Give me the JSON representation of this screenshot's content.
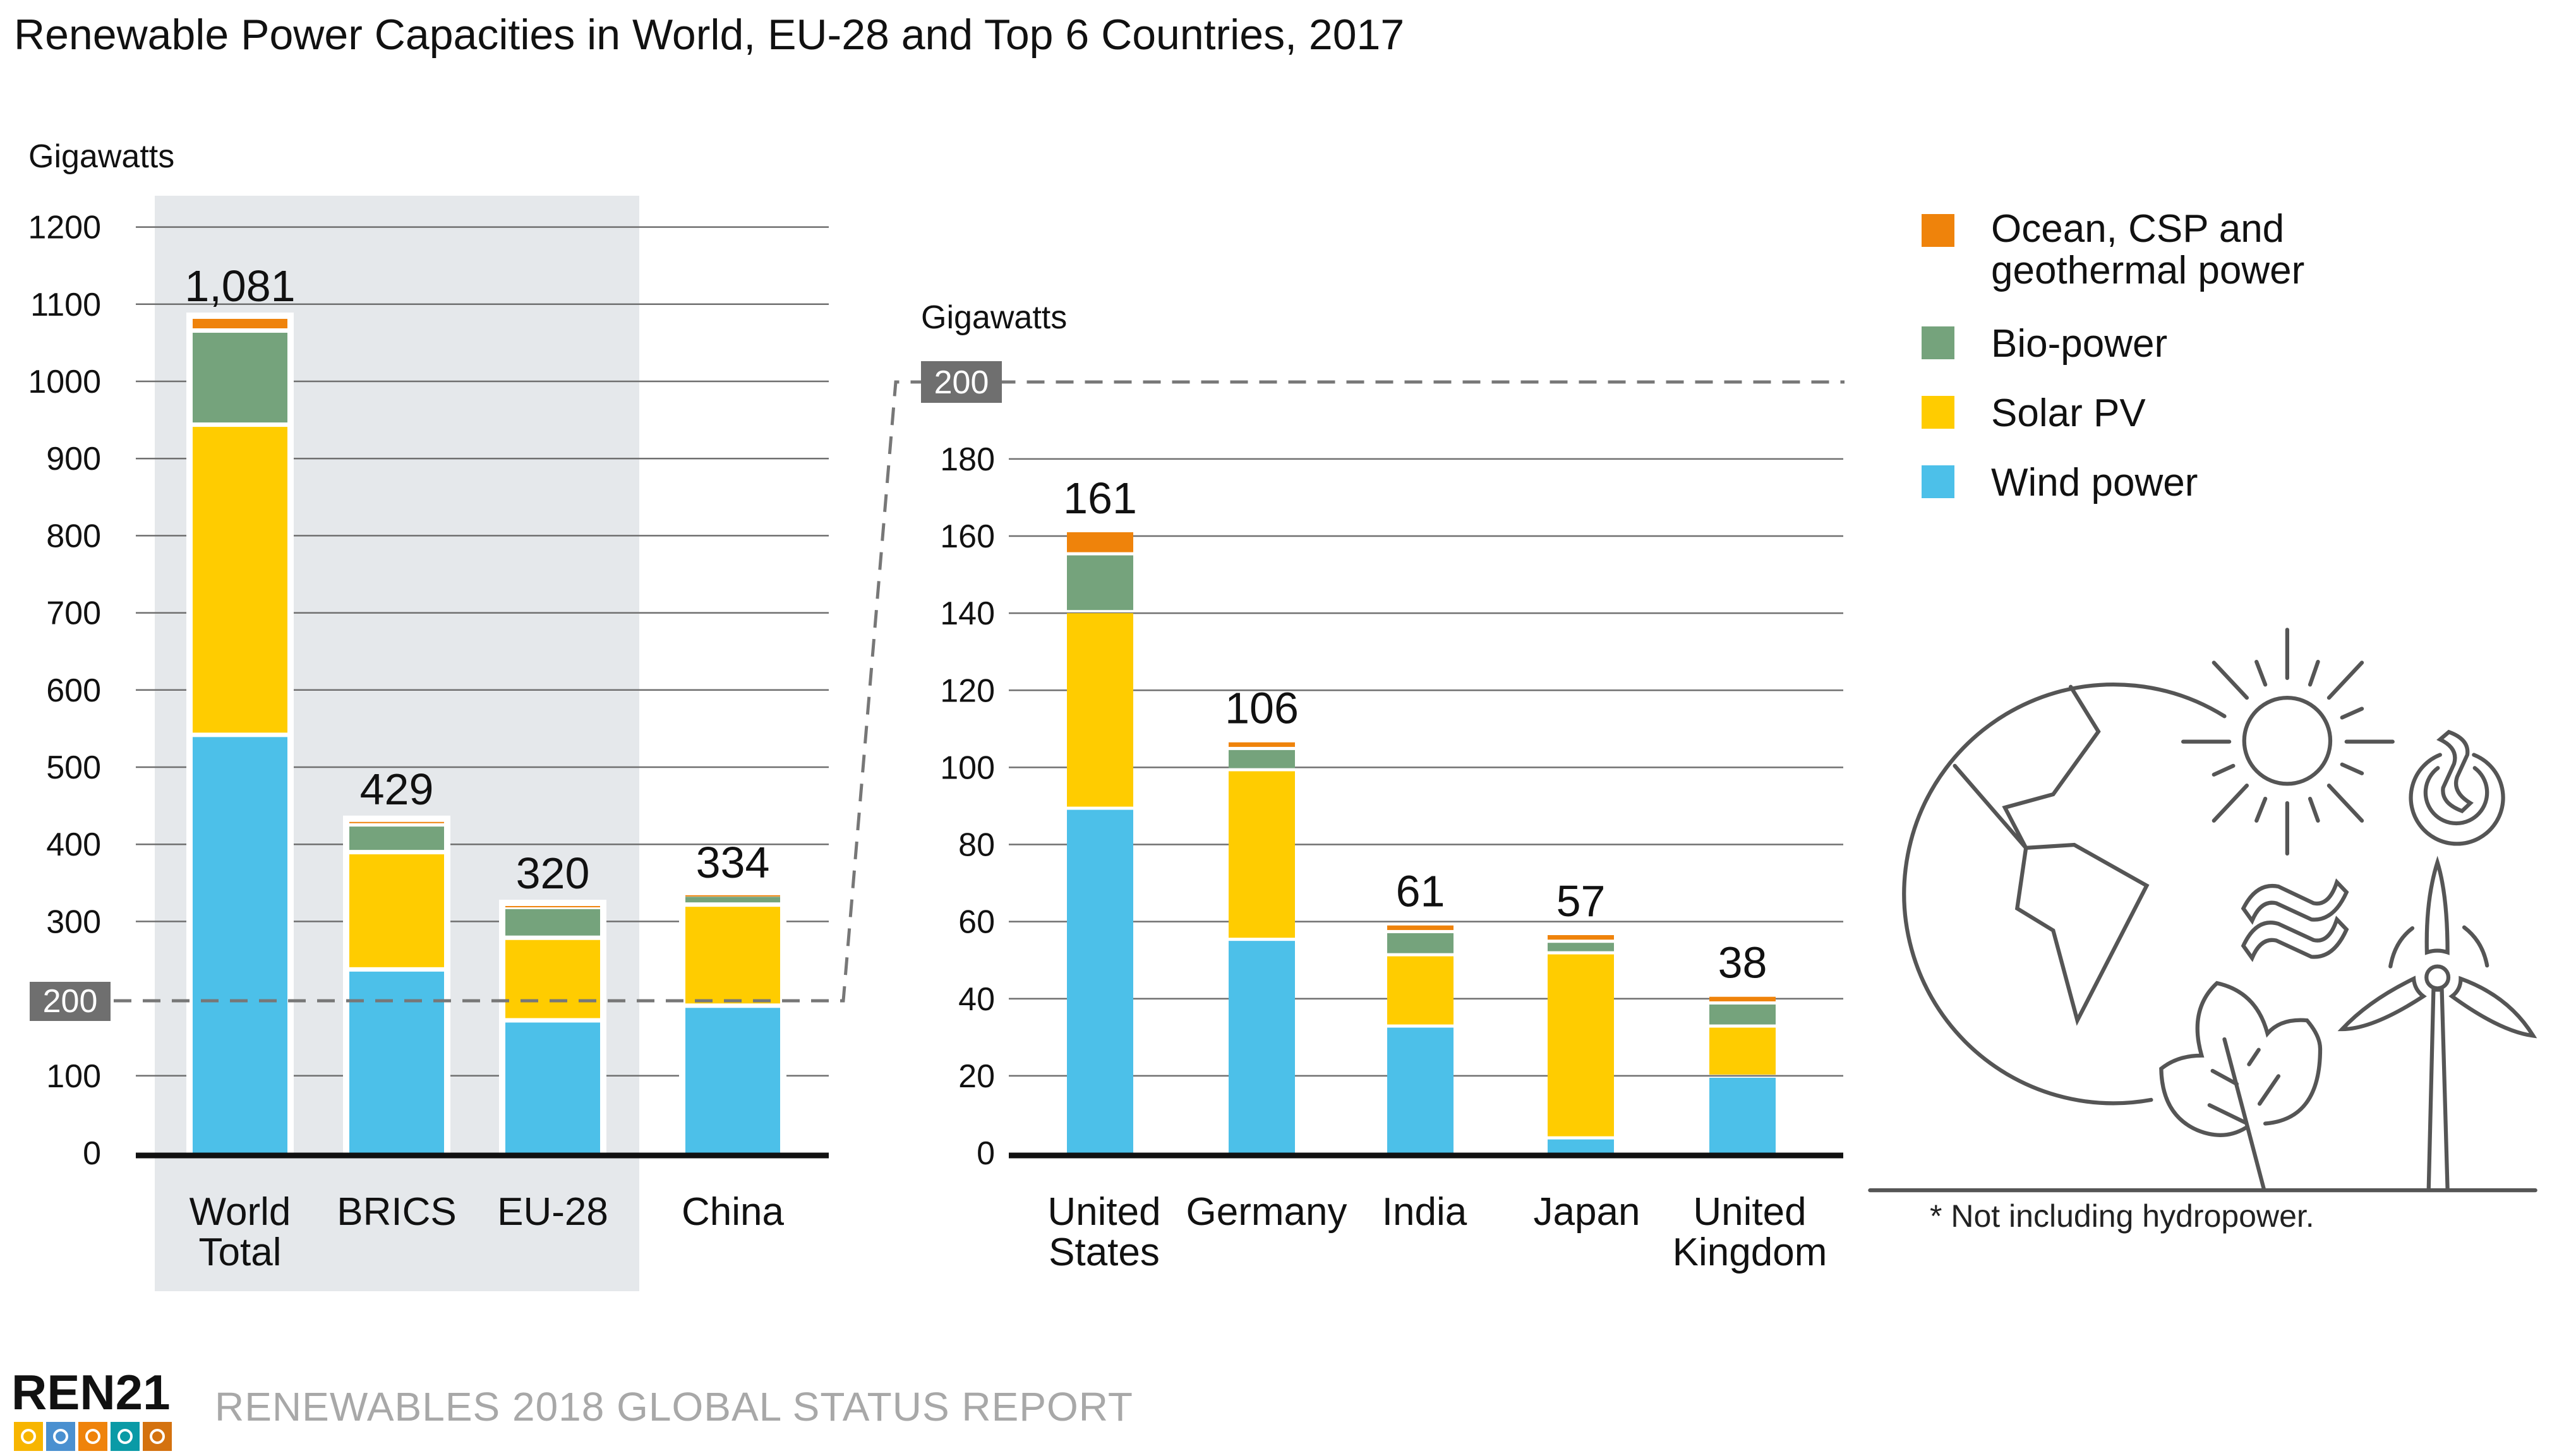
{
  "chart_data": [
    {
      "type": "bar",
      "stacked": true,
      "title": "Renewable Power Capacities in World, EU-28 and Top 6 Countries, 2017",
      "ylabel": "Gigawatts",
      "xlabel": "",
      "ylim": [
        0,
        1200
      ],
      "yticks": [
        0,
        100,
        200,
        300,
        400,
        500,
        600,
        700,
        800,
        900,
        1000,
        1100,
        1200
      ],
      "highlight_tick": 200,
      "grid": true,
      "shaded_categories": [
        "World Total",
        "BRICS",
        "EU-28"
      ],
      "categories": [
        "World Total",
        "BRICS",
        "EU-28",
        "China"
      ],
      "category_lines": [
        [
          "World",
          "Total"
        ],
        [
          "BRICS"
        ],
        [
          "EU-28"
        ],
        [
          "China"
        ]
      ],
      "totals": [
        "1,081",
        "429",
        "320",
        "334"
      ],
      "series": [
        {
          "name": "Wind power",
          "color": "#4cc0e9",
          "values": [
            539,
            235,
            169,
            188
          ]
        },
        {
          "name": "Solar PV",
          "color": "#ffcc00",
          "values": [
            402,
            152,
            107,
            131
          ]
        },
        {
          "name": "Bio-power",
          "color": "#75a37c",
          "values": [
            122,
            36,
            40,
            13
          ]
        },
        {
          "name": "Ocean, CSP and geothermal power",
          "color": "#ef830b",
          "values": [
            18,
            6,
            4,
            2
          ]
        }
      ]
    },
    {
      "type": "bar",
      "stacked": true,
      "title": "",
      "ylabel": "Gigawatts",
      "xlabel": "",
      "ylim": [
        0,
        200
      ],
      "yticks": [
        0,
        20,
        40,
        60,
        80,
        100,
        120,
        140,
        160,
        180
      ],
      "highlight_tick": 200,
      "grid": true,
      "categories": [
        "United States",
        "Germany",
        "India",
        "Japan",
        "United Kingdom"
      ],
      "category_lines": [
        [
          "United",
          "States"
        ],
        [
          "Germany"
        ],
        [
          "India"
        ],
        [
          "Japan"
        ],
        [
          "United",
          "Kingdom"
        ]
      ],
      "totals": [
        "161",
        "106",
        "61",
        "57",
        "38"
      ],
      "series": [
        {
          "name": "Wind power",
          "color": "#4cc0e9",
          "values": [
            89,
            55,
            32.5,
            3.5,
            19.5
          ]
        },
        {
          "name": "Solar PV",
          "color": "#ffcc00",
          "values": [
            51,
            44,
            18.5,
            48,
            13
          ]
        },
        {
          "name": "Bio-power",
          "color": "#75a37c",
          "values": [
            15,
            5.5,
            6,
            3,
            6
          ]
        },
        {
          "name": "Ocean, CSP and geothermal power",
          "color": "#ef830b",
          "values": [
            6,
            2,
            2,
            2,
            2
          ]
        }
      ]
    }
  ],
  "title": "Renewable Power Capacities in World, EU-28 and Top 6 Countries, 2017",
  "unit_label_left": "Gigawatts",
  "unit_label_right": "Gigawatts",
  "zoom_tick_label": "200",
  "legend": [
    {
      "lines": [
        "Ocean, CSP and",
        "geothermal power"
      ],
      "color": "#ef830b",
      "icon": "legend-swatch-ocean"
    },
    {
      "lines": [
        "Bio-power"
      ],
      "color": "#75a37c",
      "icon": "legend-swatch-bio"
    },
    {
      "lines": [
        "Solar PV"
      ],
      "color": "#ffcc00",
      "icon": "legend-swatch-solar"
    },
    {
      "lines": [
        "Wind power"
      ],
      "color": "#4cc0e9",
      "icon": "legend-swatch-wind"
    }
  ],
  "note": "* Not including hydropower.",
  "footer": {
    "logo": "REN21",
    "report": "RENEWABLES 2018 GLOBAL STATUS REPORT",
    "logo_tiles": [
      {
        "icon": "sun-icon",
        "color": "#f7b500"
      },
      {
        "icon": "wind-turbine-icon",
        "color": "#4a90d0"
      },
      {
        "icon": "geothermal-icon",
        "color": "#ef830b"
      },
      {
        "icon": "ocean-wave-icon",
        "color": "#0a9aa6"
      },
      {
        "icon": "leaf-icon",
        "color": "#d4720f"
      }
    ]
  },
  "colors": {
    "shade_band": "#e5e8eb",
    "grid": "#6f6f6f",
    "axis": "#111111",
    "zoom_label_bg": "#6f6f6f",
    "illustration": "#555555"
  }
}
